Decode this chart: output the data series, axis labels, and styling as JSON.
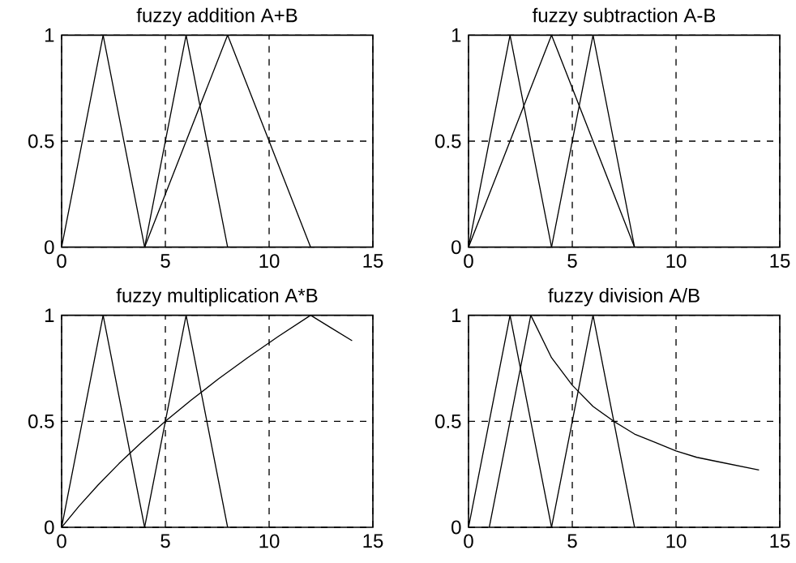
{
  "chart_data": [
    {
      "type": "line",
      "title": "fuzzy addition A+B",
      "xlim": [
        0,
        15
      ],
      "xticks": [
        0,
        5,
        10,
        15
      ],
      "ylim": [
        0,
        1
      ],
      "yticks": [
        0,
        0.5,
        1
      ],
      "grid": true,
      "series": [
        {
          "color": "#000000",
          "x": [
            0,
            2,
            4
          ],
          "values": [
            0,
            1,
            0
          ]
        },
        {
          "color": "#000000",
          "x": [
            4,
            6,
            8
          ],
          "values": [
            0,
            1,
            0
          ]
        },
        {
          "color": "#000000",
          "x": [
            4,
            8,
            12
          ],
          "values": [
            0,
            1,
            0
          ]
        }
      ]
    },
    {
      "type": "line",
      "title": "fuzzy subtraction A-B",
      "xlim": [
        0,
        15
      ],
      "xticks": [
        0,
        5,
        10,
        15
      ],
      "ylim": [
        0,
        1
      ],
      "yticks": [
        0,
        0.5,
        1
      ],
      "grid": true,
      "series": [
        {
          "color": "#000000",
          "x": [
            0,
            2,
            4
          ],
          "values": [
            0,
            1,
            0
          ]
        },
        {
          "color": "#000000",
          "x": [
            4,
            6,
            8
          ],
          "values": [
            0,
            1,
            0
          ]
        },
        {
          "color": "#000000",
          "x": [
            0,
            4,
            8
          ],
          "values": [
            0,
            1,
            0
          ]
        }
      ]
    },
    {
      "type": "line",
      "title": "fuzzy multiplication A*B",
      "xlim": [
        0,
        15
      ],
      "xticks": [
        0,
        5,
        10,
        15
      ],
      "ylim": [
        0,
        1
      ],
      "yticks": [
        0,
        0.5,
        1
      ],
      "grid": true,
      "series": [
        {
          "color": "#000000",
          "x": [
            0,
            2,
            4
          ],
          "values": [
            0,
            1,
            0
          ]
        },
        {
          "color": "#000000",
          "x": [
            4,
            6,
            8
          ],
          "values": [
            0,
            1,
            0
          ]
        },
        {
          "color": "#000000",
          "x": [
            0,
            0.84,
            1.76,
            2.76,
            3.84,
            5,
            6.24,
            7.56,
            8.96,
            10.44,
            12,
            13,
            14
          ],
          "values": [
            0,
            0.1,
            0.2,
            0.3,
            0.4,
            0.5,
            0.6,
            0.7,
            0.8,
            0.9,
            1,
            0.94,
            0.88
          ]
        }
      ]
    },
    {
      "type": "line",
      "title": "fuzzy division A/B",
      "xlim": [
        0,
        15
      ],
      "xticks": [
        0,
        5,
        10,
        15
      ],
      "ylim": [
        0,
        1
      ],
      "yticks": [
        0,
        0.5,
        1
      ],
      "grid": true,
      "series": [
        {
          "color": "#000000",
          "x": [
            0,
            2,
            4
          ],
          "values": [
            0,
            1,
            0
          ]
        },
        {
          "color": "#000000",
          "x": [
            4,
            6,
            8
          ],
          "values": [
            0,
            1,
            0
          ]
        },
        {
          "color": "#000000",
          "x": [
            1,
            3,
            4,
            5,
            6,
            7,
            8,
            9,
            10,
            11,
            12,
            13,
            14
          ],
          "values": [
            0,
            1,
            0.8,
            0.67,
            0.57,
            0.5,
            0.44,
            0.4,
            0.36,
            0.33,
            0.31,
            0.29,
            0.27
          ]
        }
      ]
    }
  ]
}
